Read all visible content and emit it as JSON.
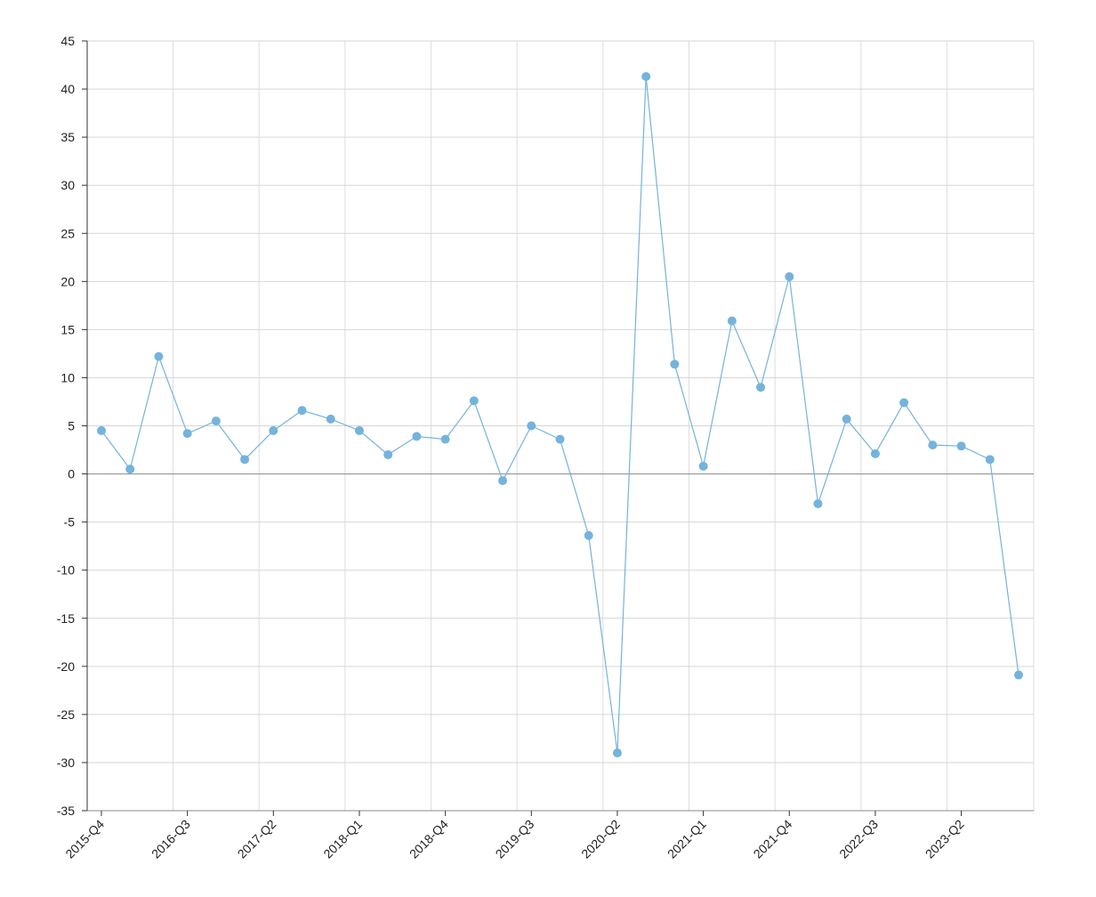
{
  "chart_data": {
    "type": "line",
    "categories": [
      "2015-Q4",
      null,
      null,
      "2016-Q3",
      null,
      null,
      "2017-Q2",
      null,
      null,
      "2018-Q1",
      null,
      null,
      "2018-Q4",
      null,
      null,
      "2019-Q3",
      null,
      null,
      "2020-Q2",
      null,
      null,
      "2021-Q1",
      null,
      null,
      "2021-Q4",
      null,
      null,
      "2022-Q3",
      null,
      null,
      "2023-Q2",
      null,
      null
    ],
    "values": [
      4.5,
      0.5,
      12.2,
      4.2,
      5.5,
      1.5,
      4.5,
      6.6,
      5.7,
      4.5,
      2.0,
      3.9,
      3.6,
      7.6,
      -0.7,
      5.0,
      3.6,
      -6.4,
      -29.0,
      41.3,
      11.4,
      0.8,
      15.9,
      9.0,
      20.5,
      -3.1,
      5.7,
      2.1,
      7.4,
      3.0,
      2.9,
      1.5,
      -20.9
    ],
    "color": "#74b3dc",
    "ylim": [
      -35,
      45
    ],
    "yticks": [
      -35,
      -30,
      -25,
      -20,
      -15,
      -10,
      -5,
      0,
      5,
      10,
      15,
      20,
      25,
      30,
      35,
      40,
      45
    ],
    "grid": true
  }
}
